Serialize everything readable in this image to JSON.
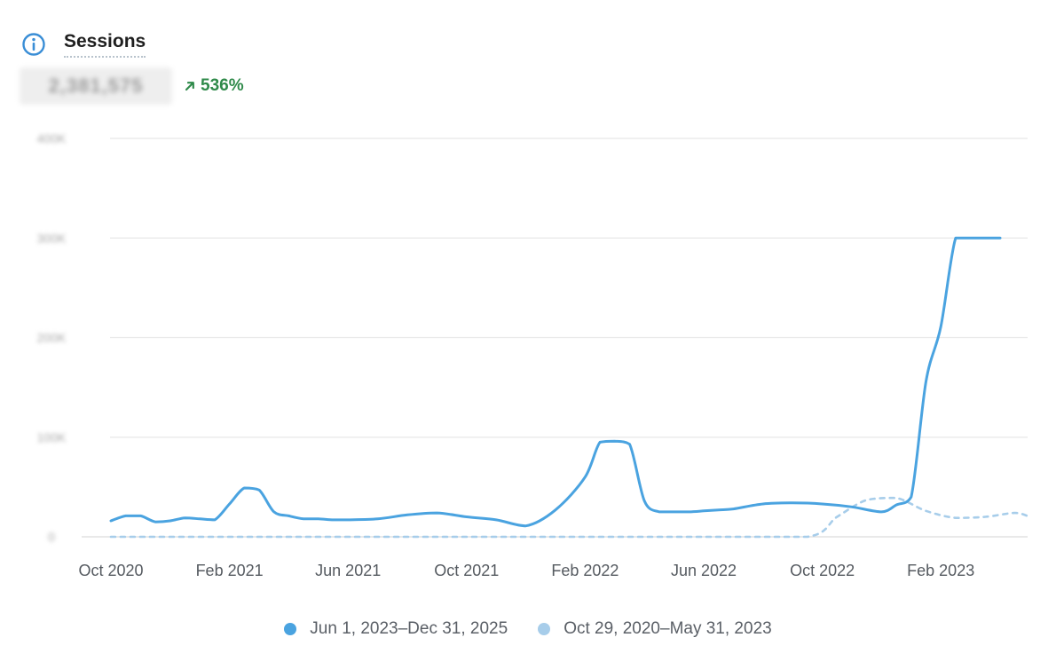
{
  "header": {
    "title": "Sessions",
    "value": "2,381,575",
    "change": "536%"
  },
  "icons": {
    "info": "info-circle-icon",
    "trend": "arrow-up-right-icon"
  },
  "colors": {
    "current": "#4aa3e0",
    "previous": "#a7cdea",
    "gridline": "#e8e8e8",
    "positive": "#2f8a4a"
  },
  "legend": {
    "current_label": "Jun 1, 2023–Dec 31, 2025",
    "previous_label": "Oct 29, 2020–May 31, 2023"
  },
  "chart_data": {
    "type": "line",
    "title": "Sessions",
    "xlabel": "",
    "ylabel": "",
    "x_axis_labels": [
      "Oct 2020",
      "Feb 2021",
      "Jun 2021",
      "Oct 2021",
      "Feb 2022",
      "Jun 2022",
      "Oct 2022",
      "Feb 2023"
    ],
    "y_tick_labels": [
      "0",
      "100K",
      "200K",
      "300K",
      "400K"
    ],
    "ylim": [
      0,
      400000
    ],
    "grid": true,
    "legend_position": "bottom",
    "x_index_range": [
      0,
      31
    ],
    "series": [
      {
        "name": "Jun 1, 2023–Dec 31, 2025",
        "style": "solid",
        "x": [
          0,
          0.5,
          1,
          1.5,
          2,
          2.5,
          3,
          3.5,
          4,
          4.5,
          5,
          5.5,
          6,
          6.5,
          7,
          7.5,
          8,
          9,
          10,
          11,
          12,
          13,
          14,
          15,
          16,
          16.5,
          17,
          17.5,
          18,
          18.5,
          19,
          19.5,
          20,
          20.5,
          21,
          22,
          23,
          24,
          25,
          26,
          26.5,
          27,
          27.5,
          28,
          28.5,
          29,
          29.5,
          30
        ],
        "y": [
          16000,
          21000,
          21000,
          15000,
          16000,
          19000,
          18000,
          17000,
          33000,
          49000,
          47000,
          25000,
          21000,
          18000,
          18000,
          17000,
          17000,
          18000,
          22000,
          24000,
          20000,
          17000,
          11000,
          27000,
          60000,
          95000,
          96000,
          93000,
          36000,
          25000,
          25000,
          25000,
          26000,
          27000,
          28000,
          33000,
          34000,
          33000,
          30000,
          25000,
          32000,
          40000,
          156000,
          211000,
          300000,
          300000,
          300000,
          300000
        ]
      },
      {
        "name": "Oct 29, 2020–May 31, 2023",
        "style": "dashed",
        "x": [
          0,
          5,
          10,
          15,
          20,
          23.5,
          24.5,
          25.5,
          26.5,
          27.5,
          28.5,
          29.5,
          30.5,
          31
        ],
        "y": [
          0,
          0,
          0,
          0,
          0,
          0,
          20000,
          37000,
          39000,
          26000,
          19000,
          20000,
          24000,
          20000
        ]
      }
    ]
  }
}
